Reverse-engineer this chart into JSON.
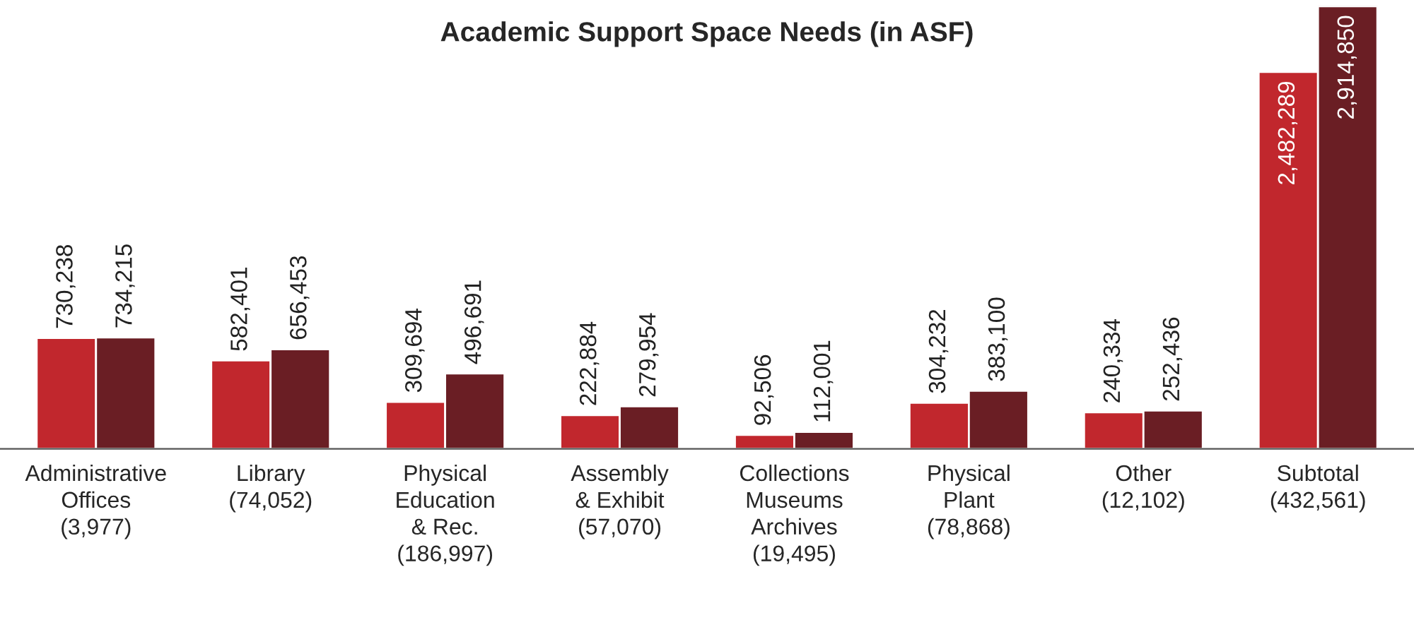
{
  "chart_data": {
    "type": "bar",
    "title": "Academic Support Space Needs (in ASF)",
    "categories": [
      "Administrative\nOffices\n(3,977)",
      "Library\n(74,052)",
      "Physical\nEducation\n& Rec.\n(186,997)",
      "Assembly\n& Exhibit\n(57,070)",
      "Collections\nMuseums\nArchives\n(19,495)",
      "Physical\nPlant\n(78,868)",
      "Other\n(12,102)",
      "Subtotal\n(432,561)"
    ],
    "series": [
      {
        "color": "#c1272d",
        "values": [
          730238,
          582401,
          309694,
          222884,
          92506,
          304232,
          240334,
          2482289
        ],
        "value_labels": [
          "730,238",
          "582,401",
          "309,694",
          "222,884",
          "92,506",
          "304,232",
          "240,334",
          "2,482,289"
        ]
      },
      {
        "color": "#6a1e24",
        "values": [
          734215,
          656453,
          496691,
          279954,
          112001,
          383100,
          252436,
          2914850
        ],
        "value_labels": [
          "734,215",
          "656,453",
          "496,691",
          "279,954",
          "112,001",
          "383,100",
          "252,436",
          "2,914,850"
        ]
      }
    ]
  }
}
